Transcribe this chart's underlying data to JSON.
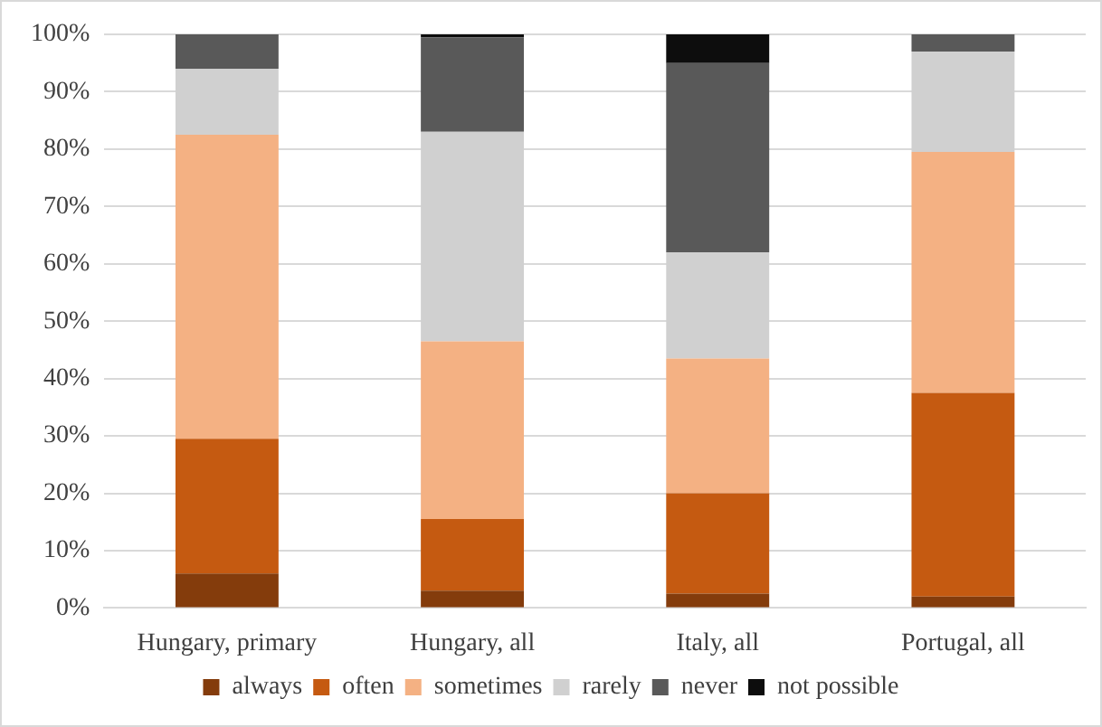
{
  "chart_data": {
    "type": "bar",
    "stacked": true,
    "categories": [
      "Hungary, primary",
      "Hungary, all",
      "Italy, all",
      "Portugal, all"
    ],
    "series": [
      {
        "name": "always",
        "color": "#843c0c",
        "values": [
          6,
          3,
          2.5,
          2
        ]
      },
      {
        "name": "often",
        "color": "#c55a11",
        "values": [
          23.5,
          12.5,
          17.5,
          35.5
        ]
      },
      {
        "name": "sometimes",
        "color": "#f4b183",
        "values": [
          53,
          31,
          23.5,
          42
        ]
      },
      {
        "name": "rarely",
        "color": "#d0d0d0",
        "values": [
          11.5,
          36.5,
          18.5,
          17.5
        ]
      },
      {
        "name": "never",
        "color": "#595959",
        "values": [
          6,
          16.5,
          33,
          3
        ]
      },
      {
        "name": "not possible",
        "color": "#0d0d0d",
        "values": [
          0,
          0.5,
          5,
          0
        ]
      }
    ],
    "ylim": [
      0,
      100
    ],
    "yticks": [
      {
        "value": 0,
        "label": "0%"
      },
      {
        "value": 10,
        "label": "10%"
      },
      {
        "value": 20,
        "label": "20%"
      },
      {
        "value": 30,
        "label": "30%"
      },
      {
        "value": 40,
        "label": "40%"
      },
      {
        "value": 50,
        "label": "50%"
      },
      {
        "value": 60,
        "label": "60%"
      },
      {
        "value": 70,
        "label": "70%"
      },
      {
        "value": 80,
        "label": "80%"
      },
      {
        "value": 90,
        "label": "90%"
      },
      {
        "value": 100,
        "label": "100%"
      }
    ],
    "grid": "y",
    "legend": "bottom"
  }
}
